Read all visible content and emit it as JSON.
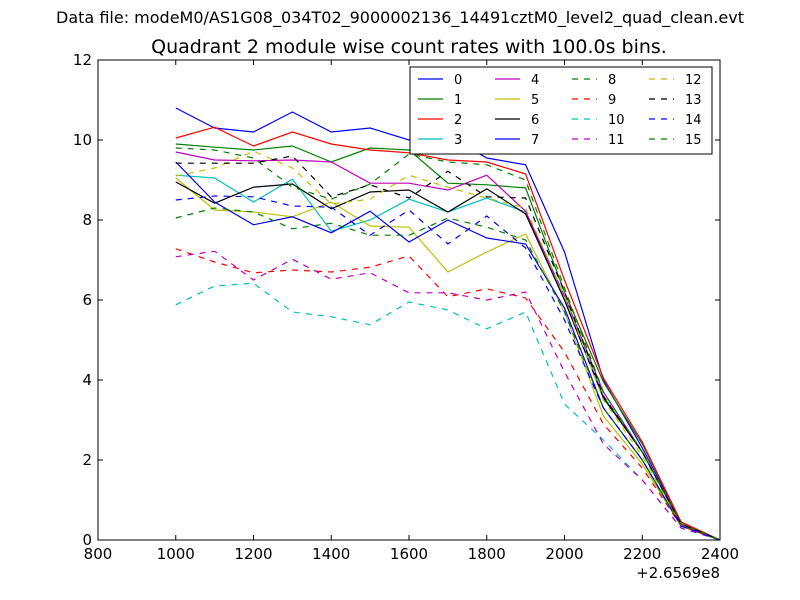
{
  "suptitle": "Data file: modeM0/AS1G08_034T02_9000002136_14491cztM0_level2_quad_clean.evt",
  "chart_data": {
    "type": "line",
    "title": "Quadrant 2 module wise count rates with 100.0s bins.",
    "xlabel": "",
    "ylabel": "",
    "x_offset_label": "+2.6569e8",
    "xlim": [
      800,
      2400
    ],
    "ylim": [
      0,
      12
    ],
    "xticks": [
      "800",
      "1000",
      "1200",
      "1400",
      "1600",
      "1800",
      "2000",
      "2200",
      "2400"
    ],
    "yticks": [
      "0",
      "2",
      "4",
      "6",
      "8",
      "10",
      "12"
    ],
    "grid": false,
    "legend": "top-right",
    "x": [
      1000,
      1100,
      1200,
      1300,
      1400,
      1500,
      1600,
      1700,
      1800,
      1900,
      2000,
      2100,
      2200,
      2300,
      2400
    ],
    "series": [
      {
        "name": "0",
        "color": "#0000ff",
        "dash": "solid",
        "values": [
          10.8,
          10.3,
          10.2,
          10.7,
          10.2,
          10.3,
          10.0,
          10.1,
          9.55,
          9.38,
          7.2,
          4.0,
          2.3,
          0.45,
          0.0
        ]
      },
      {
        "name": "1",
        "color": "#008000",
        "dash": "solid",
        "values": [
          9.9,
          9.82,
          9.75,
          9.85,
          9.45,
          9.8,
          9.75,
          8.92,
          8.88,
          8.8,
          6.2,
          3.95,
          2.4,
          0.45,
          0.0
        ]
      },
      {
        "name": "2",
        "color": "#ff0000",
        "dash": "solid",
        "values": [
          10.05,
          10.32,
          9.85,
          10.2,
          9.9,
          9.75,
          9.68,
          9.5,
          9.45,
          9.15,
          6.5,
          4.05,
          2.45,
          0.45,
          0.0
        ]
      },
      {
        "name": "3",
        "color": "#00bfbf",
        "dash": "solid",
        "values": [
          9.12,
          9.05,
          8.45,
          9.02,
          7.72,
          8.0,
          8.52,
          8.2,
          8.55,
          8.2,
          6.0,
          3.6,
          2.2,
          0.4,
          0.0
        ]
      },
      {
        "name": "4",
        "color": "#bf00bf",
        "dash": "solid",
        "values": [
          9.7,
          9.5,
          9.48,
          9.5,
          9.45,
          8.92,
          8.92,
          8.75,
          9.12,
          8.22,
          6.1,
          3.7,
          2.2,
          0.4,
          0.0
        ]
      },
      {
        "name": "5",
        "color": "#bfbf00",
        "dash": "solid",
        "values": [
          9.05,
          8.25,
          8.2,
          8.08,
          8.45,
          7.85,
          7.82,
          6.7,
          7.2,
          7.65,
          5.7,
          3.1,
          1.9,
          0.35,
          0.0
        ]
      },
      {
        "name": "6",
        "color": "#000000",
        "dash": "solid",
        "values": [
          8.95,
          8.42,
          8.82,
          8.9,
          8.28,
          8.7,
          8.75,
          8.2,
          8.78,
          8.15,
          6.0,
          3.55,
          2.2,
          0.4,
          0.0
        ]
      },
      {
        "name": "7",
        "color": "#0000ff",
        "dash": "solid",
        "values": [
          9.45,
          8.45,
          7.88,
          8.08,
          7.68,
          8.22,
          7.45,
          8.0,
          7.55,
          7.4,
          5.8,
          3.3,
          2.0,
          0.35,
          0.0
        ]
      },
      {
        "name": "8",
        "color": "#008000",
        "dash": "dashed",
        "values": [
          8.05,
          8.3,
          8.2,
          7.78,
          7.92,
          7.62,
          7.62,
          8.05,
          7.82,
          7.5,
          5.7,
          3.3,
          2.0,
          0.35,
          0.0
        ]
      },
      {
        "name": "9",
        "color": "#ff0000",
        "dash": "dashed",
        "values": [
          7.28,
          6.95,
          6.68,
          6.75,
          6.7,
          6.82,
          7.1,
          6.08,
          6.28,
          6.05,
          4.7,
          2.9,
          1.8,
          0.35,
          0.0
        ]
      },
      {
        "name": "10",
        "color": "#00bfbf",
        "dash": "dashed",
        "values": [
          5.88,
          6.35,
          6.42,
          5.7,
          5.58,
          5.38,
          5.95,
          5.75,
          5.28,
          5.7,
          3.4,
          2.5,
          1.5,
          0.3,
          0.0
        ]
      },
      {
        "name": "11",
        "color": "#bf00bf",
        "dash": "dashed",
        "values": [
          7.08,
          7.22,
          6.5,
          7.02,
          6.52,
          6.68,
          6.18,
          6.18,
          6.0,
          6.2,
          4.2,
          2.4,
          1.5,
          0.3,
          0.0
        ]
      },
      {
        "name": "12",
        "color": "#bfbf00",
        "dash": "dashed",
        "values": [
          9.1,
          9.3,
          9.72,
          9.3,
          8.4,
          8.52,
          9.12,
          8.82,
          8.55,
          8.3,
          6.1,
          3.5,
          2.1,
          0.4,
          0.0
        ]
      },
      {
        "name": "13",
        "color": "#000000",
        "dash": "dashed",
        "values": [
          9.42,
          9.42,
          9.42,
          9.6,
          8.58,
          8.88,
          8.55,
          9.22,
          8.58,
          8.55,
          6.2,
          3.6,
          2.2,
          0.4,
          0.0
        ]
      },
      {
        "name": "14",
        "color": "#0000ff",
        "dash": "dashed",
        "values": [
          8.5,
          8.6,
          8.58,
          8.35,
          8.32,
          7.62,
          8.25,
          7.4,
          8.1,
          7.3,
          5.5,
          3.3,
          2.0,
          0.35,
          0.0
        ]
      },
      {
        "name": "15",
        "color": "#008000",
        "dash": "dashed",
        "values": [
          9.8,
          9.75,
          9.55,
          8.82,
          8.52,
          8.9,
          9.65,
          9.45,
          9.38,
          9.0,
          6.3,
          3.7,
          2.2,
          0.4,
          0.0
        ]
      }
    ]
  }
}
